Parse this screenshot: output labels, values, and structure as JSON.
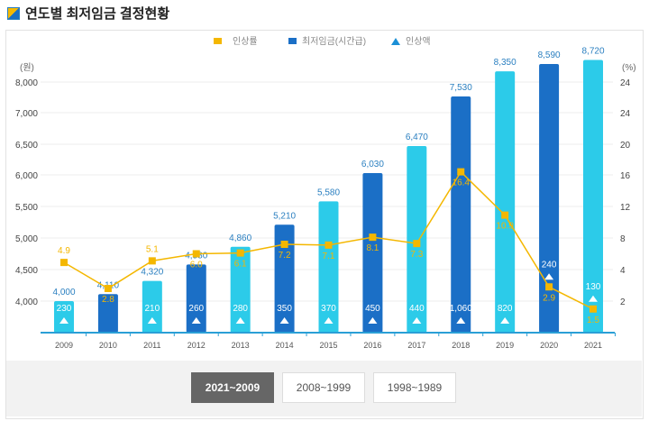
{
  "page": {
    "title": "연도별 최저임금 결정현황"
  },
  "buttons": [
    {
      "label": "2021~2009",
      "active": true
    },
    {
      "label": "2008~1999",
      "active": false
    },
    {
      "label": "1998~1989",
      "active": false
    }
  ],
  "chart_data": {
    "type": "bar",
    "title": "연도별 최저임금 결정현황",
    "legend": [
      "인상률",
      "최저임금(시간급)",
      "인상액"
    ],
    "legend_position": "top-center",
    "ylabel_left": "(원)",
    "ylabel_right": "(%)",
    "left_ticks": [
      {
        "v": 8000,
        "l": "8,000"
      },
      {
        "v": 7000,
        "l": "7,000"
      },
      {
        "v": 6500,
        "l": "6,500"
      },
      {
        "v": 6000,
        "l": "6,000"
      },
      {
        "v": 5500,
        "l": "5,500"
      },
      {
        "v": 5000,
        "l": "5,000"
      },
      {
        "v": 4500,
        "l": "4,500"
      },
      {
        "v": 4000,
        "l": "4,000"
      }
    ],
    "right_ticks": [
      "24",
      "24",
      "20",
      "16",
      "12",
      "8",
      "4",
      "2"
    ],
    "categories": [
      "2009",
      "2010",
      "2011",
      "2012",
      "2013",
      "2014",
      "2015",
      "2016",
      "2017",
      "2018",
      "2019",
      "2020",
      "2021"
    ],
    "series": [
      {
        "name": "최저임금(시간급)",
        "type": "bar",
        "values": [
          4000,
          4110,
          4320,
          4580,
          4860,
          5210,
          5580,
          6030,
          6470,
          7530,
          8350,
          8590,
          8720
        ],
        "labels": [
          "4,000",
          "4,110",
          "4,320",
          "4,580",
          "4,860",
          "5,210",
          "5,580",
          "6,030",
          "6,470",
          "7,530",
          "8,350",
          "8,590",
          "8,720"
        ]
      },
      {
        "name": "인상액",
        "type": "marker",
        "values": [
          230,
          110,
          210,
          260,
          280,
          350,
          370,
          450,
          440,
          1060,
          820,
          240,
          130
        ],
        "labels": [
          "230",
          "110",
          "210",
          "260",
          "280",
          "350",
          "370",
          "450",
          "440",
          "1,060",
          "820",
          "240",
          "130"
        ]
      },
      {
        "name": "인상률",
        "type": "line",
        "values": [
          4.9,
          2.8,
          5.1,
          6.0,
          6.1,
          7.2,
          7.1,
          8.1,
          7.3,
          16.4,
          10.9,
          2.9,
          1.5
        ]
      }
    ],
    "colors": {
      "bar_light": "#2ccbe9",
      "bar_dark": "#1b6fc6",
      "line": "#f4b700",
      "label": "#2a7fc0"
    }
  }
}
